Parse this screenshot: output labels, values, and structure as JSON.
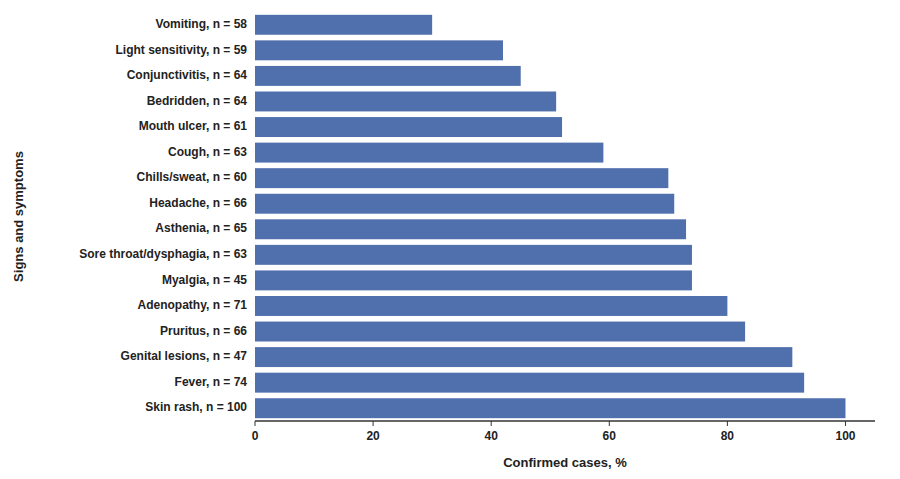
{
  "chart_data": {
    "type": "bar",
    "orientation": "horizontal",
    "categories": [
      "Skin rash, n = 100",
      "Fever, n = 74",
      "Genital lesions, n = 47",
      "Pruritus, n = 66",
      "Adenopathy, n = 71",
      "Myalgia, n = 45",
      "Sore throat/dysphagia, n = 63",
      "Asthenia, n = 65",
      "Headache, n = 66",
      "Chills/sweat, n = 60",
      "Cough, n = 63",
      "Mouth ulcer, n = 61",
      "Bedridden, n = 64",
      "Conjunctivitis, n = 64",
      "Light sensitivity, n = 59",
      "Vomiting, n = 58"
    ],
    "values": [
      100,
      93,
      91,
      83,
      80,
      74,
      74,
      73,
      71,
      70,
      59,
      52,
      51,
      45,
      42,
      30
    ],
    "color": "#4f6fad",
    "xlabel": "Confirmed cases, %",
    "ylabel": "Signs and symptoms",
    "xlim": [
      0,
      105
    ],
    "xticks": [
      0,
      20,
      40,
      60,
      80,
      100
    ],
    "grid": false
  }
}
